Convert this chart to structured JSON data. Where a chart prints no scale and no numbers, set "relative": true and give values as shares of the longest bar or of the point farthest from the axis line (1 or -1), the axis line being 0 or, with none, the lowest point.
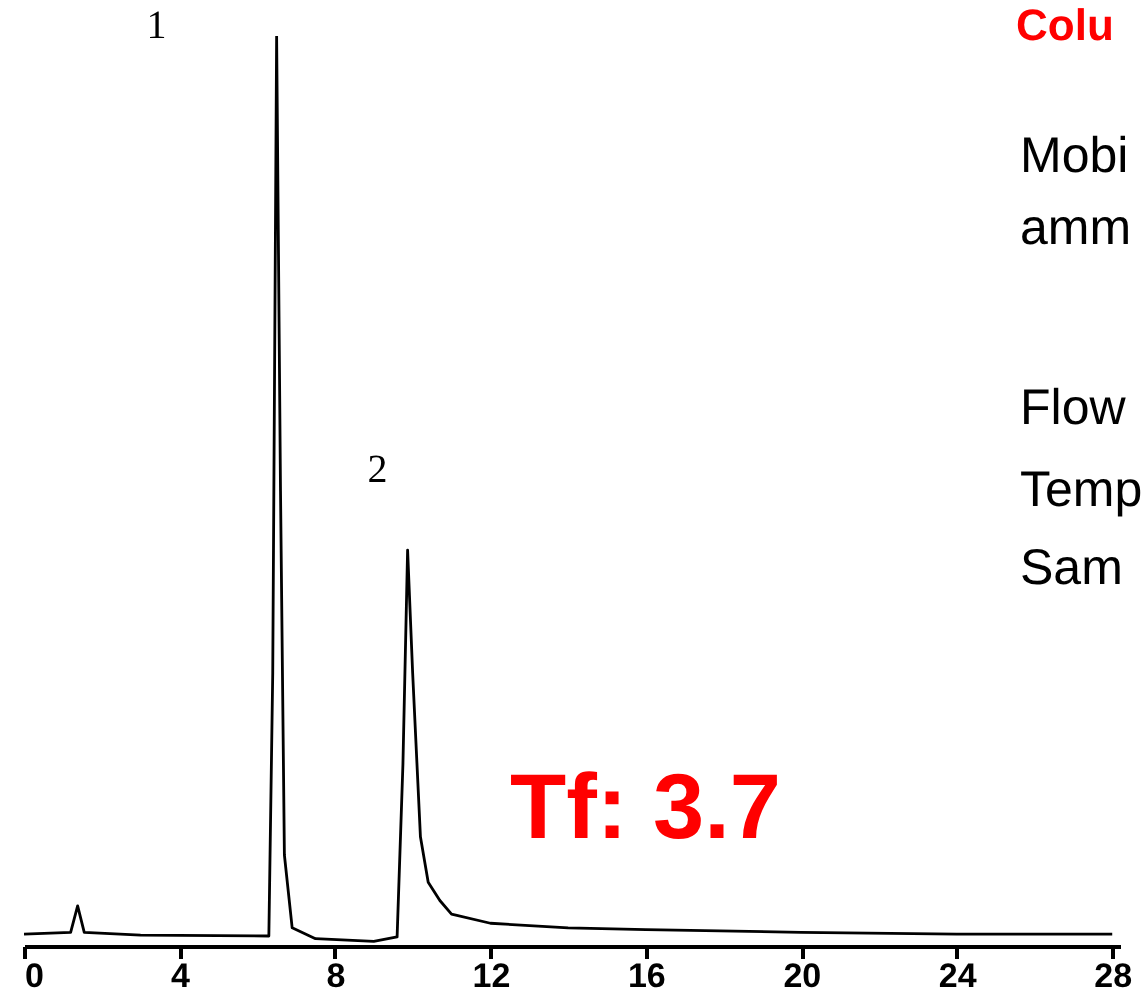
{
  "chart_data": {
    "type": "line",
    "relative": true,
    "x": [
      0,
      1.2,
      1.38,
      1.55,
      3,
      6.3,
      6.4,
      6.5,
      6.6,
      6.7,
      6.9,
      7.5,
      9.0,
      9.6,
      9.75,
      9.87,
      10.0,
      10.2,
      10.4,
      10.7,
      11,
      12,
      14,
      16,
      20,
      24,
      28
    ],
    "series": [
      {
        "color": "#000000",
        "values": [
          0.013,
          0.015,
          0.044,
          0.015,
          0.012,
          0.011,
          0.3,
          1.0,
          0.5,
          0.1,
          0.02,
          0.008,
          0.005,
          0.01,
          0.2,
          0.435,
          0.3,
          0.12,
          0.07,
          0.05,
          0.035,
          0.025,
          0.02,
          0.018,
          0.015,
          0.013,
          0.013
        ]
      }
    ],
    "xlim": [
      0,
      28.2
    ],
    "xticks": [
      0,
      4,
      8,
      12,
      16,
      20,
      24,
      28
    ],
    "annotations": [
      {
        "text": "1",
        "x": 6.5,
        "y": 1.0
      },
      {
        "text": "2",
        "x": 9.87,
        "y": 0.435
      },
      "Tf: 3.7",
      "Colu",
      "Mobi",
      "amm",
      "Flow",
      "Temp",
      "Sam"
    ]
  }
}
